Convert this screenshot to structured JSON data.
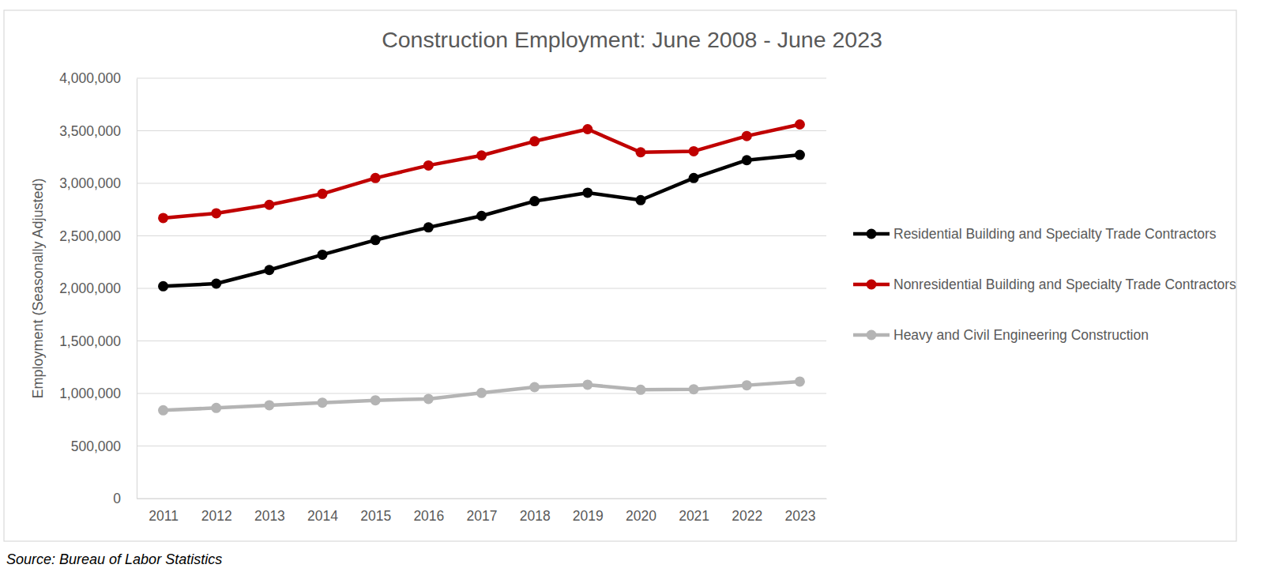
{
  "chart_data": {
    "type": "line",
    "title": "Construction Employment: June 2008 - June 2023",
    "y_label": "Employment (Seasonally Adjusted)",
    "source": "Source: Bureau of Labor Statistics",
    "categories": [
      "2011",
      "2012",
      "2013",
      "2014",
      "2015",
      "2016",
      "2017",
      "2018",
      "2019",
      "2020",
      "2021",
      "2022",
      "2023"
    ],
    "series": [
      {
        "name": "Residential Building and Specialty Trade Contractors",
        "color": "#000000",
        "marker": "circle",
        "values": [
          2020000,
          2045000,
          2175000,
          2320000,
          2460000,
          2580000,
          2690000,
          2830000,
          2910000,
          2840000,
          3050000,
          3220000,
          3270000
        ]
      },
      {
        "name": "Nonresidential Building and Specialty Trade Contractors",
        "color": "#c00000",
        "marker": "circle",
        "values": [
          2670000,
          2715000,
          2795000,
          2900000,
          3050000,
          3170000,
          3265000,
          3400000,
          3515000,
          3295000,
          3305000,
          3450000,
          3560000
        ]
      },
      {
        "name": "Heavy and Civil Engineering Construction",
        "color": "#b4b4b4",
        "marker": "circle",
        "values": [
          840000,
          862000,
          888000,
          912000,
          935000,
          948000,
          1005000,
          1060000,
          1083000,
          1035000,
          1040000,
          1078000,
          1113000
        ]
      }
    ],
    "ylim": [
      0,
      4000000
    ],
    "yticks": [
      0,
      {
        "value": 500000,
        "label": "500,000"
      },
      {
        "value": 1000000,
        "label": "1,000,000"
      },
      {
        "value": 1500000,
        "label": "1,500,000"
      },
      {
        "value": 2000000,
        "label": "2,000,000"
      },
      {
        "value": 2500000,
        "label": "2,500,000"
      },
      {
        "value": 3000000,
        "label": "3,000,000"
      },
      {
        "value": 3500000,
        "label": "3,500,000"
      },
      {
        "value": 4000000,
        "label": "4,000,000"
      }
    ],
    "grid": true,
    "legend": "right"
  }
}
